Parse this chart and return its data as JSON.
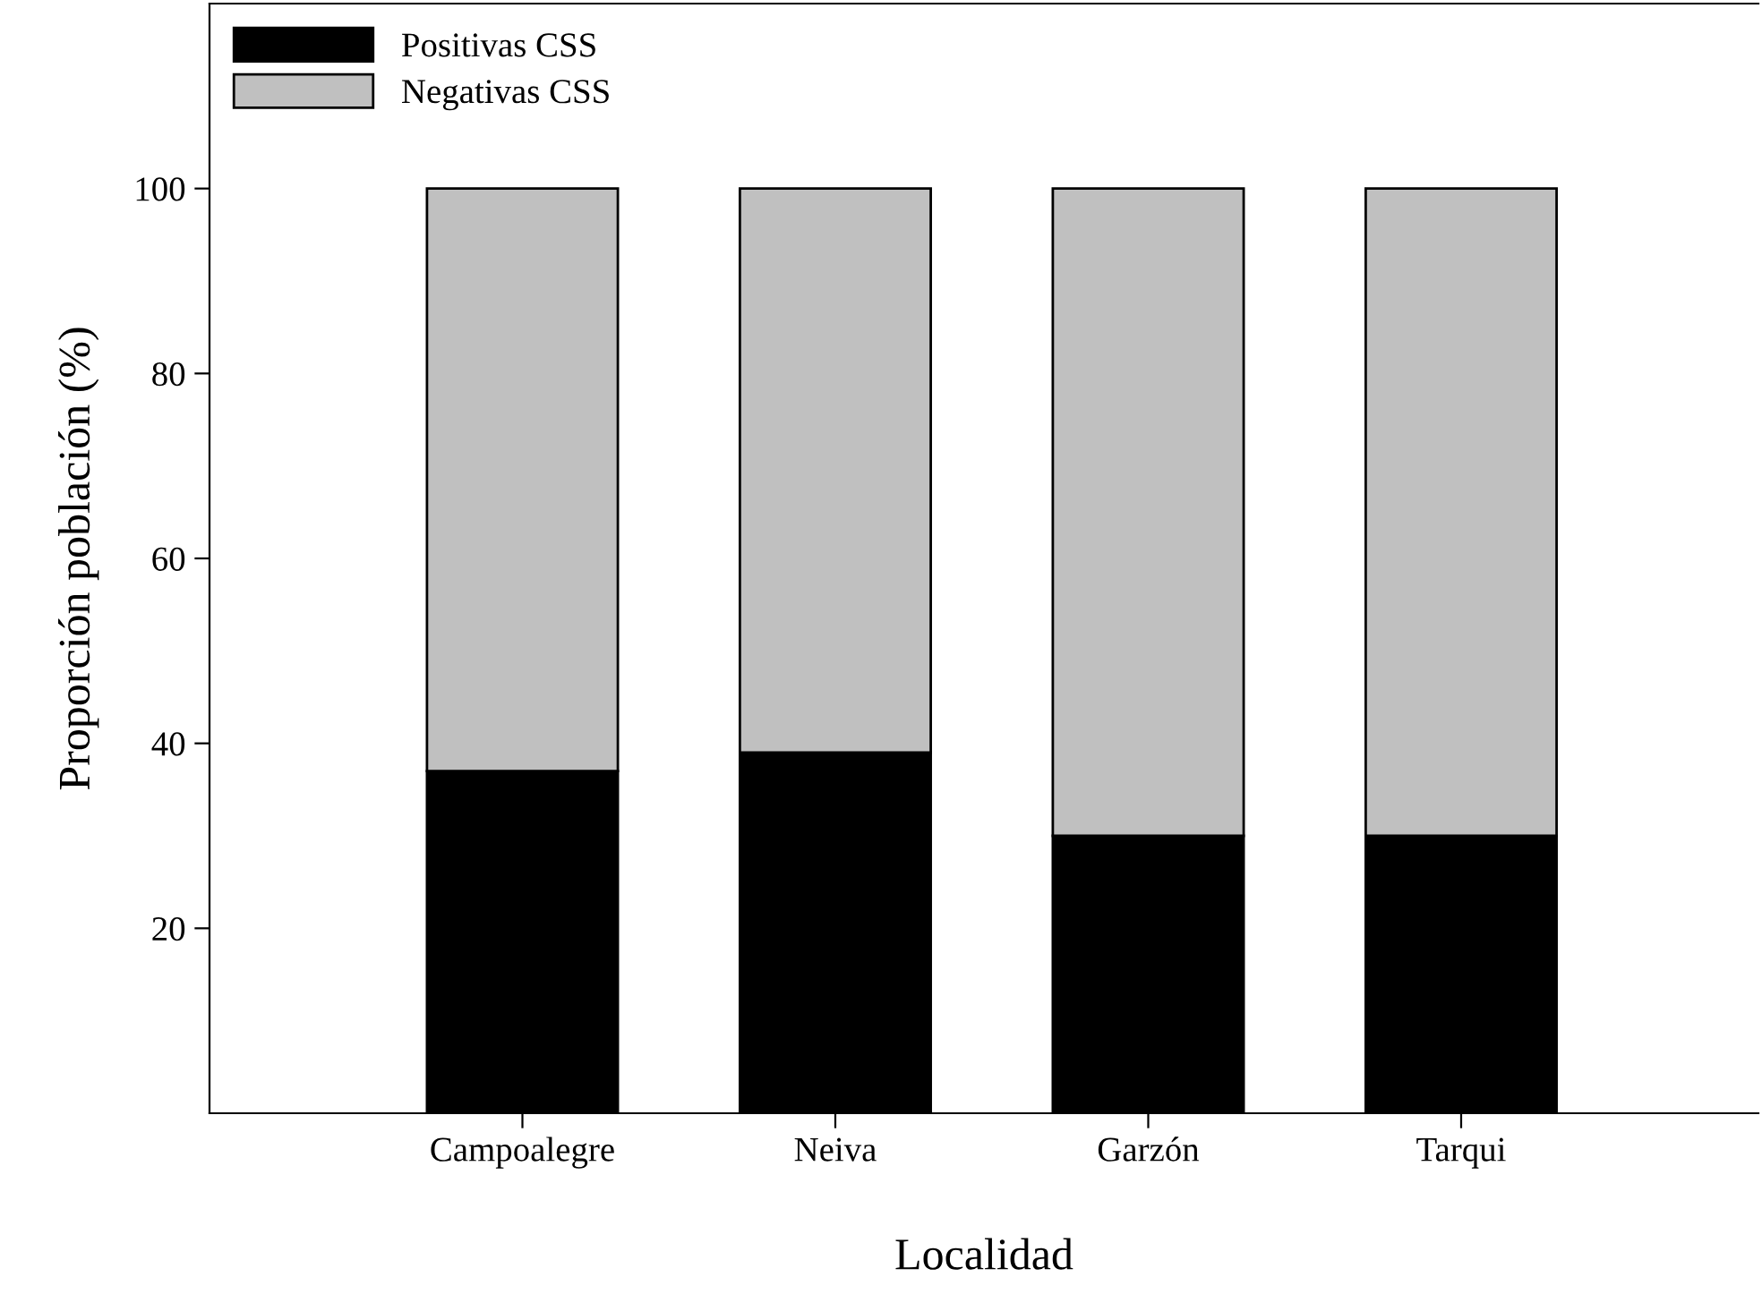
{
  "chart_data": {
    "type": "bar",
    "stacked": true,
    "xlabel": "Localidad",
    "ylabel": "Proporción población (%)",
    "categories": [
      "Campoalegre",
      "Neiva",
      "Garzón",
      "Tarqui"
    ],
    "series": [
      {
        "name": "Positivas CSS",
        "color": "#000000",
        "values": [
          37,
          39,
          30,
          30
        ]
      },
      {
        "name": "Negativas CSS",
        "color": "#c0c0c0",
        "values": [
          63,
          61,
          70,
          70
        ]
      }
    ],
    "ylim": [
      0,
      120
    ],
    "yticks": [
      20,
      40,
      60,
      80,
      100
    ],
    "grid": false,
    "legend": "top left"
  }
}
